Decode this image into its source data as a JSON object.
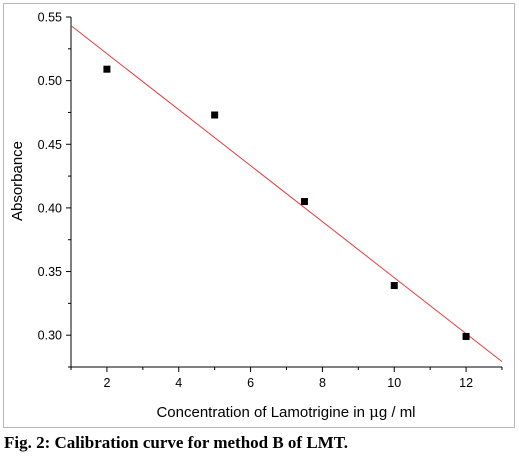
{
  "caption": "Fig. 2: Calibration curve for method B of LMT.",
  "chart_data": {
    "type": "scatter",
    "title": "",
    "xlabel_parts": [
      "Concentration of Lamotrigine in ",
      "μ",
      "g / ml"
    ],
    "ylabel": "Absorbance",
    "xlim": [
      1,
      13
    ],
    "ylim": [
      0.275,
      0.55
    ],
    "xticks": [
      2,
      4,
      6,
      8,
      10,
      12
    ],
    "xtick_labels": [
      "2",
      "4",
      "6",
      "8",
      "10",
      "12"
    ],
    "yticks": [
      0.3,
      0.35,
      0.4,
      0.45,
      0.5,
      0.55
    ],
    "ytick_labels": [
      "0.30",
      "0.35",
      "0.40",
      "0.45",
      "0.50",
      "0.55"
    ],
    "points": [
      {
        "x": 2,
        "y": 0.509
      },
      {
        "x": 5,
        "y": 0.473
      },
      {
        "x": 7.5,
        "y": 0.405
      },
      {
        "x": 10,
        "y": 0.339
      },
      {
        "x": 12,
        "y": 0.299
      }
    ],
    "fit_line": {
      "x": [
        1,
        13
      ],
      "y": [
        0.5432,
        0.2792
      ],
      "color": "#e04040"
    },
    "marker_color": "#000000",
    "grid": false,
    "legend": "none"
  }
}
